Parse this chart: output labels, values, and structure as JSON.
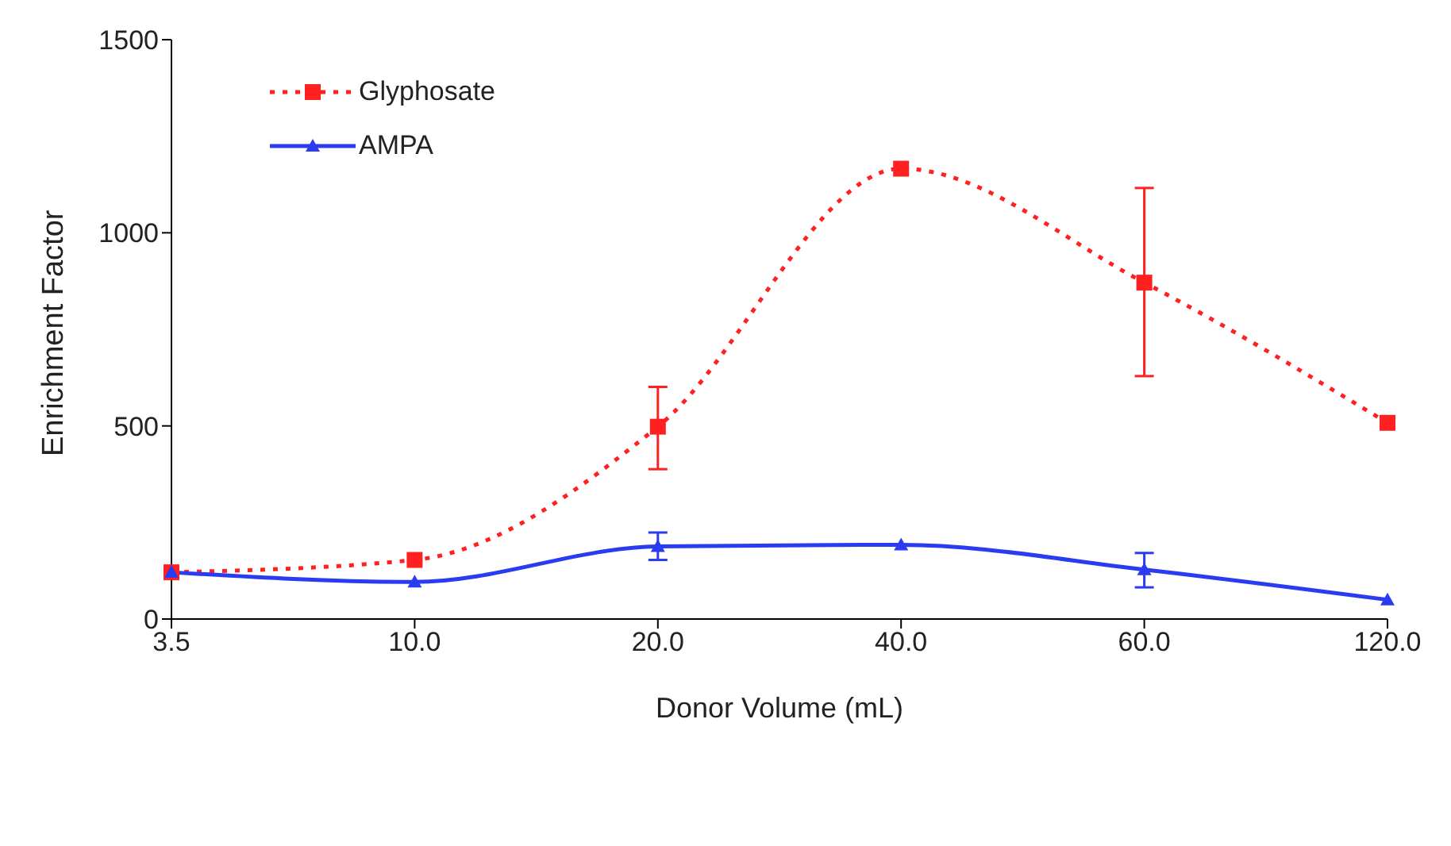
{
  "chart_data": {
    "type": "line",
    "xlabel": "Donor Volume (mL)",
    "ylabel": "Enrichment Factor",
    "categories": [
      "3.5",
      "10.0",
      "20.0",
      "40.0",
      "60.0",
      "120.0"
    ],
    "ylim": [
      0,
      1500
    ],
    "yticks": [
      0,
      500,
      1000,
      1500
    ],
    "grid": false,
    "legend": "top left",
    "series": [
      {
        "name": "Glyphosate",
        "color": "#ff2020",
        "line_style": "dotted",
        "marker": "square",
        "values": [
          121,
          153,
          498,
          1166,
          871,
          508
        ],
        "errors": [
          null,
          null,
          [
            388,
            601
          ],
          null,
          [
            629,
            1116
          ],
          null
        ]
      },
      {
        "name": "AMPA",
        "color": "#2a3cf0",
        "line_style": "solid",
        "marker": "triangle",
        "values": [
          121,
          96,
          188,
          192,
          128,
          50
        ],
        "errors": [
          null,
          null,
          [
            153,
            224
          ],
          null,
          [
            82,
            171
          ],
          null
        ]
      }
    ]
  }
}
